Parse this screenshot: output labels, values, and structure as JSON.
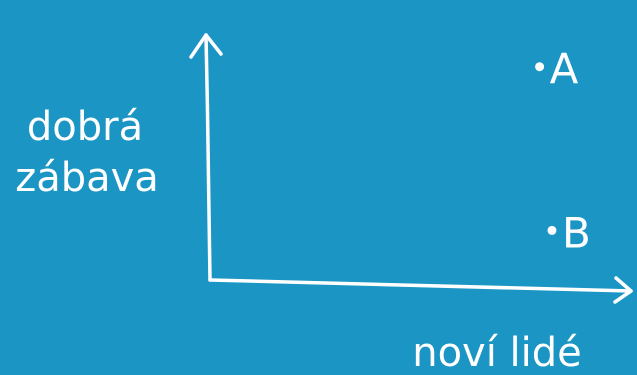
{
  "colors": {
    "background": "#1b95c3",
    "ink": "#ffffff"
  },
  "chart_data": {
    "type": "scatter",
    "title": "",
    "xlabel": "noví lidé",
    "ylabel_lines": [
      "dobrá",
      "zábava"
    ],
    "grid": false,
    "legend": "none",
    "xlim": [
      0,
      10
    ],
    "ylim": [
      0,
      10
    ],
    "points": [
      {
        "label": "A",
        "x": 8.0,
        "y": 8.6
      },
      {
        "label": "B",
        "x": 8.3,
        "y": 2.0
      }
    ]
  }
}
